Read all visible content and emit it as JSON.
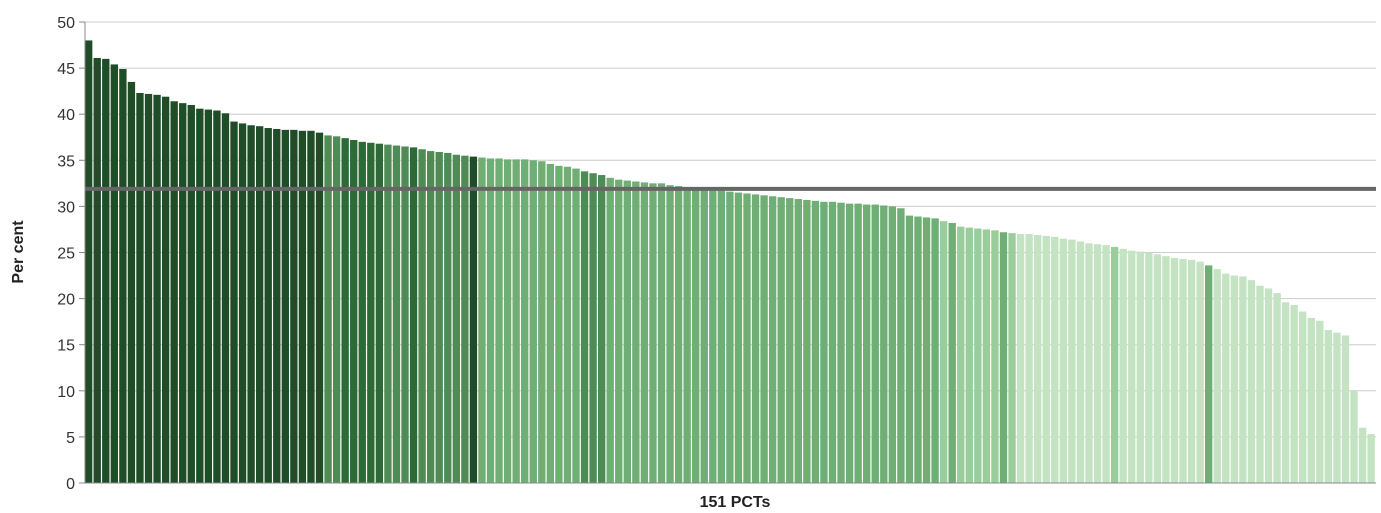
{
  "chart_data": {
    "type": "bar",
    "xlabel": "151 PCTs",
    "ylabel": "Per cent",
    "ylim": [
      0,
      50
    ],
    "yticks": [
      0,
      5,
      10,
      15,
      20,
      25,
      30,
      35,
      40,
      45,
      50
    ],
    "grid": true,
    "reference_line": 31.9,
    "colors": {
      "darkest": "#1f4d28",
      "dark": "#2d6a37",
      "medium_dark": "#4f8c55",
      "medium": "#6fae74",
      "light": "#9acd9c",
      "lightest": "#c4e3c3",
      "reference_line": "#666666",
      "grid": "#cccccc"
    },
    "values": [
      48.0,
      46.1,
      46.0,
      45.4,
      44.9,
      43.5,
      42.3,
      42.2,
      42.1,
      41.9,
      41.4,
      41.2,
      41.0,
      40.6,
      40.5,
      40.4,
      40.1,
      39.2,
      39.0,
      38.8,
      38.7,
      38.5,
      38.4,
      38.3,
      38.3,
      38.2,
      38.2,
      38.0,
      37.7,
      37.6,
      37.4,
      37.2,
      37.0,
      36.9,
      36.8,
      36.7,
      36.6,
      36.5,
      36.4,
      36.2,
      36.0,
      35.9,
      35.8,
      35.6,
      35.5,
      35.4,
      35.3,
      35.2,
      35.2,
      35.1,
      35.1,
      35.1,
      35.0,
      34.9,
      34.6,
      34.4,
      34.3,
      34.1,
      33.8,
      33.6,
      33.4,
      33.1,
      32.9,
      32.8,
      32.7,
      32.6,
      32.5,
      32.5,
      32.3,
      32.2,
      32.1,
      32.0,
      31.9,
      31.8,
      31.7,
      31.6,
      31.5,
      31.4,
      31.3,
      31.2,
      31.1,
      31.0,
      30.9,
      30.8,
      30.7,
      30.6,
      30.5,
      30.5,
      30.4,
      30.3,
      30.3,
      30.2,
      30.2,
      30.1,
      30.0,
      29.8,
      29.0,
      28.9,
      28.8,
      28.7,
      28.4,
      28.2,
      27.8,
      27.7,
      27.6,
      27.5,
      27.4,
      27.2,
      27.1,
      27.0,
      27.0,
      26.9,
      26.8,
      26.7,
      26.5,
      26.4,
      26.2,
      26.0,
      25.9,
      25.8,
      25.6,
      25.4,
      25.2,
      25.1,
      25.0,
      24.8,
      24.6,
      24.4,
      24.3,
      24.2,
      24.0,
      23.6,
      23.2,
      22.7,
      22.5,
      22.4,
      22.0,
      21.4,
      21.1,
      20.6,
      19.6,
      19.3,
      18.6,
      17.9,
      17.6,
      16.6,
      16.3,
      16.0,
      10.0,
      6.0,
      5.3
    ],
    "shades": [
      1,
      1,
      1,
      1,
      1,
      1,
      1,
      1,
      1,
      1,
      1,
      1,
      1,
      1,
      1,
      1,
      1,
      1,
      1,
      1,
      1,
      1,
      1,
      1,
      1,
      1,
      1,
      1,
      3,
      3,
      2,
      2,
      2,
      2,
      2,
      3,
      3,
      3,
      2,
      3,
      3,
      3,
      3,
      3,
      3,
      1,
      4,
      4,
      4,
      4,
      4,
      4,
      4,
      4,
      4,
      4,
      4,
      4,
      3,
      3,
      3,
      4,
      4,
      4,
      4,
      4,
      4,
      4,
      4,
      4,
      4,
      4,
      4,
      4,
      4,
      4,
      4,
      4,
      4,
      4,
      4,
      4,
      4,
      4,
      4,
      4,
      4,
      4,
      4,
      4,
      4,
      4,
      4,
      4,
      4,
      4,
      4,
      4,
      4,
      4,
      5,
      4,
      5,
      5,
      5,
      5,
      5,
      4,
      5,
      6,
      6,
      6,
      6,
      6,
      6,
      6,
      6,
      6,
      6,
      6,
      5,
      6,
      6,
      6,
      6,
      6,
      6,
      6,
      6,
      6,
      6,
      4,
      6,
      6,
      6,
      6,
      6,
      6,
      6,
      6,
      6,
      6,
      6,
      6,
      6,
      6,
      6,
      6,
      6,
      6,
      6
    ]
  }
}
